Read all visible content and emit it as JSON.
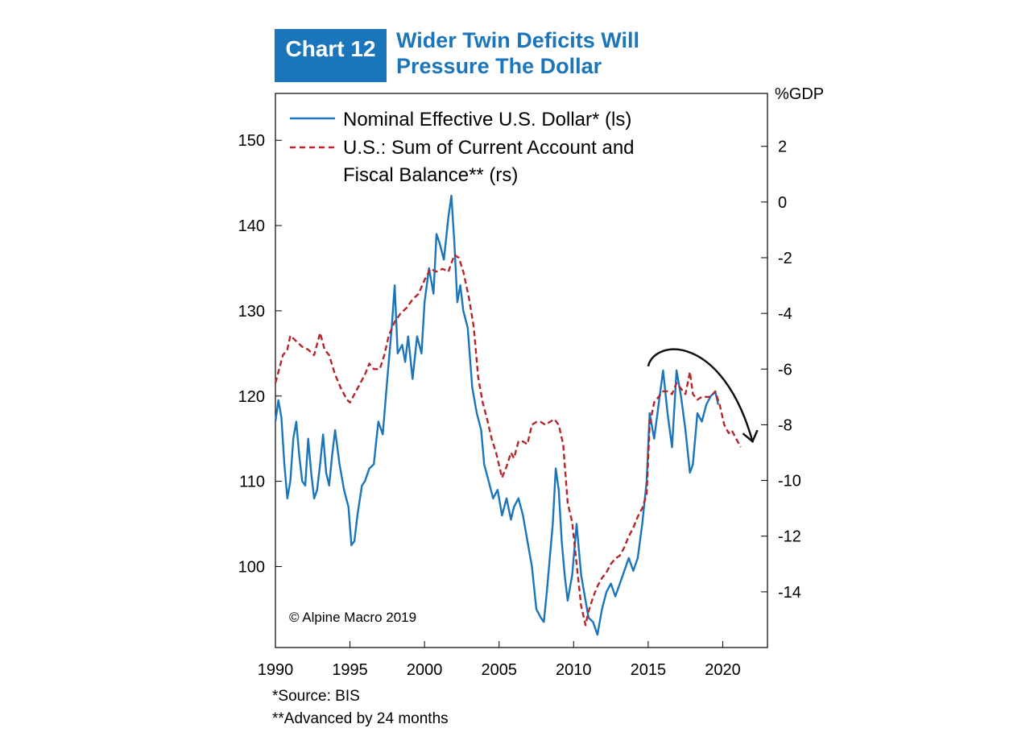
{
  "header": {
    "badge": "Chart 12",
    "title_line1": "Wider Twin Deficits Will",
    "title_line2": "Pressure The Dollar"
  },
  "footnotes": {
    "source": "*Source: BIS",
    "advance": "**Advanced by 24 months"
  },
  "chart_data": {
    "type": "line",
    "title": "Wider Twin Deficits Will Pressure The Dollar",
    "right_axis_unit": "%GDP",
    "copyright": "© Alpine Macro 2019",
    "xlim": [
      1990,
      2023
    ],
    "xticks": [
      1990,
      1995,
      2000,
      2005,
      2010,
      2015,
      2020
    ],
    "y_left": {
      "lim": [
        90.5,
        155.5
      ],
      "ticks": [
        100,
        110,
        120,
        130,
        140,
        150
      ]
    },
    "y_right": {
      "lim": [
        -16.0,
        3.9
      ],
      "ticks": [
        -14,
        -12,
        -10,
        -8,
        -6,
        -4,
        -2,
        0,
        2
      ]
    },
    "legend": {
      "position": "top-left",
      "line1": "Nominal Effective U.S. Dollar* (ls)",
      "line2a": "U.S.: Sum of Current Account and",
      "line2b": "Fiscal Balance** (rs)"
    },
    "colors": {
      "dollar": "#1a75bb",
      "balance": "#b5262b",
      "arrow": "#111111"
    },
    "series": [
      {
        "name": "Nominal Effective U.S. Dollar* (ls)",
        "axis": "left",
        "style": "solid",
        "x": [
          1990.0,
          1990.2,
          1990.4,
          1990.6,
          1990.8,
          1991.0,
          1991.2,
          1991.4,
          1991.6,
          1991.8,
          1992.0,
          1992.2,
          1992.4,
          1992.6,
          1992.8,
          1993.0,
          1993.2,
          1993.4,
          1993.6,
          1993.8,
          1994.0,
          1994.3,
          1994.6,
          1994.9,
          1995.1,
          1995.3,
          1995.5,
          1995.8,
          1996.0,
          1996.3,
          1996.6,
          1996.9,
          1997.2,
          1997.5,
          1997.8,
          1998.0,
          1998.2,
          1998.5,
          1998.7,
          1998.9,
          1999.2,
          1999.5,
          1999.8,
          2000.0,
          2000.3,
          2000.6,
          2000.8,
          2001.0,
          2001.3,
          2001.6,
          2001.8,
          2002.0,
          2002.2,
          2002.4,
          2002.6,
          2002.9,
          2003.2,
          2003.5,
          2003.8,
          2004.0,
          2004.3,
          2004.6,
          2004.9,
          2005.2,
          2005.5,
          2005.8,
          2006.0,
          2006.3,
          2006.6,
          2006.9,
          2007.2,
          2007.5,
          2007.8,
          2008.0,
          2008.2,
          2008.4,
          2008.6,
          2008.8,
          2009.0,
          2009.2,
          2009.4,
          2009.6,
          2009.9,
          2010.2,
          2010.5,
          2010.8,
          2011.0,
          2011.3,
          2011.6,
          2011.9,
          2012.2,
          2012.5,
          2012.8,
          2013.1,
          2013.4,
          2013.7,
          2014.0,
          2014.3,
          2014.6,
          2014.9,
          2015.1,
          2015.4,
          2015.7,
          2016.0,
          2016.3,
          2016.6,
          2016.9,
          2017.2,
          2017.5,
          2017.8,
          2018.0,
          2018.3,
          2018.6,
          2018.9,
          2019.2,
          2019.5,
          2019.7
        ],
        "values": [
          117.0,
          119.5,
          117.5,
          112.0,
          108.0,
          110.0,
          115.0,
          117.0,
          113.0,
          110.0,
          109.5,
          115.0,
          111.0,
          108.0,
          109.0,
          112.0,
          115.5,
          111.0,
          109.5,
          113.0,
          116.0,
          112.0,
          109.0,
          107.0,
          102.5,
          103.0,
          106.0,
          109.5,
          110.0,
          111.5,
          112.0,
          117.0,
          115.5,
          122.0,
          128.0,
          133.0,
          125.0,
          126.0,
          124.0,
          127.0,
          122.0,
          127.0,
          125.0,
          131.0,
          135.0,
          132.0,
          139.0,
          138.0,
          136.0,
          141.0,
          143.5,
          138.0,
          131.0,
          133.0,
          130.0,
          128.0,
          121.0,
          118.0,
          116.0,
          112.0,
          110.0,
          108.0,
          109.0,
          106.0,
          108.0,
          105.5,
          107.0,
          108.0,
          106.0,
          103.0,
          100.0,
          95.0,
          94.0,
          93.5,
          97.0,
          101.0,
          105.0,
          111.5,
          109.0,
          103.0,
          99.0,
          96.0,
          99.0,
          105.0,
          99.0,
          96.0,
          94.0,
          93.5,
          92.0,
          95.0,
          97.0,
          98.0,
          96.5,
          98.0,
          99.5,
          101.0,
          99.5,
          101.0,
          105.0,
          110.0,
          118.0,
          115.0,
          119.0,
          123.0,
          118.0,
          114.0,
          123.0,
          120.0,
          116.0,
          111.0,
          112.0,
          118.0,
          117.0,
          119.0,
          120.0,
          120.5,
          119.0
        ]
      },
      {
        "name": "U.S.: Sum of Current Account and Fiscal Balance** (rs)",
        "axis": "right",
        "style": "dashed",
        "x": [
          1990.0,
          1990.5,
          1990.8,
          1991.0,
          1991.4,
          1991.8,
          1992.2,
          1992.6,
          1993.0,
          1993.3,
          1993.6,
          1994.0,
          1994.4,
          1994.8,
          1995.0,
          1995.3,
          1995.6,
          1996.0,
          1996.3,
          1996.6,
          1997.0,
          1997.3,
          1997.6,
          1998.0,
          1998.4,
          1998.8,
          1999.2,
          1999.6,
          2000.0,
          2000.4,
          2000.8,
          2001.2,
          2001.6,
          2002.0,
          2002.3,
          2002.6,
          2003.0,
          2003.3,
          2003.6,
          2003.9,
          2004.2,
          2004.5,
          2004.8,
          2005.2,
          2005.5,
          2005.8,
          2006.0,
          2006.3,
          2006.6,
          2006.9,
          2007.2,
          2007.5,
          2007.8,
          2008.1,
          2008.4,
          2008.7,
          2009.0,
          2009.3,
          2009.6,
          2009.9,
          2010.2,
          2010.5,
          2010.8,
          2011.0,
          2011.3,
          2011.6,
          2011.9,
          2012.2,
          2012.5,
          2012.8,
          2013.1,
          2013.4,
          2013.7,
          2014.0,
          2014.3,
          2014.6,
          2014.9,
          2015.1,
          2015.4,
          2015.7,
          2016.0,
          2016.3,
          2016.6,
          2016.9,
          2017.2,
          2017.5,
          2017.8,
          2018.0,
          2018.3,
          2018.6,
          2018.9,
          2019.2,
          2019.5,
          2019.8,
          2020.1,
          2020.4,
          2020.6,
          2020.9,
          2021.2
        ],
        "values": [
          -6.5,
          -5.5,
          -5.3,
          -4.8,
          -5.0,
          -5.2,
          -5.3,
          -5.5,
          -4.7,
          -5.3,
          -5.5,
          -6.2,
          -6.7,
          -7.1,
          -7.2,
          -6.9,
          -6.6,
          -6.2,
          -5.8,
          -6.0,
          -6.0,
          -5.5,
          -4.8,
          -4.3,
          -4.0,
          -3.8,
          -3.5,
          -3.3,
          -2.8,
          -2.4,
          -2.5,
          -2.4,
          -2.5,
          -1.9,
          -2.0,
          -2.5,
          -3.5,
          -4.5,
          -6.3,
          -7.2,
          -7.8,
          -8.5,
          -9.0,
          -9.9,
          -9.5,
          -9.0,
          -9.2,
          -8.6,
          -8.6,
          -8.7,
          -8.0,
          -7.9,
          -7.9,
          -8.0,
          -7.9,
          -7.8,
          -8.0,
          -8.7,
          -10.8,
          -11.5,
          -13.0,
          -14.5,
          -15.2,
          -14.7,
          -14.2,
          -13.8,
          -13.5,
          -13.3,
          -13.0,
          -12.8,
          -12.7,
          -12.4,
          -12.0,
          -11.7,
          -11.3,
          -11.0,
          -10.5,
          -8.0,
          -7.2,
          -7.0,
          -6.8,
          -6.8,
          -6.9,
          -6.5,
          -6.7,
          -6.9,
          -6.1,
          -6.9,
          -7.1,
          -7.0,
          -7.0,
          -7.0,
          -6.8,
          -7.3,
          -8.0,
          -8.3,
          -8.2,
          -8.5,
          -8.8
        ]
      }
    ],
    "annotation": {
      "type": "curved-arrow",
      "from": [
        2015.0,
        -5.9
      ],
      "to": [
        2022.0,
        -8.6
      ],
      "peak_year": 2017.0
    }
  }
}
